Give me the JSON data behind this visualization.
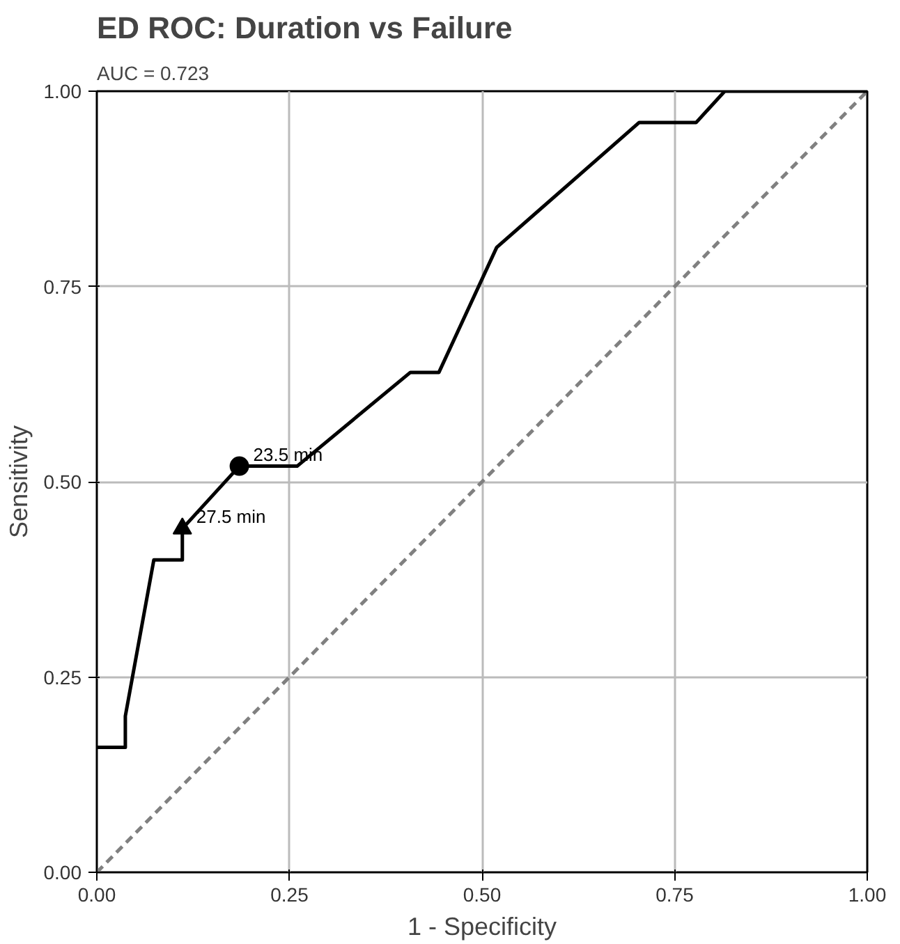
{
  "chart_data": {
    "type": "line",
    "title": "ED ROC: Duration vs Failure",
    "subtitle": "AUC = 0.723",
    "xlabel": "1 - Specificity",
    "ylabel": "Sensitivity",
    "xlim": [
      0,
      1
    ],
    "ylim": [
      0,
      1
    ],
    "xticks": [
      {
        "value": 0,
        "label": "0.00"
      },
      {
        "value": 0.25,
        "label": "0.25"
      },
      {
        "value": 0.5,
        "label": "0.50"
      },
      {
        "value": 0.75,
        "label": "0.75"
      },
      {
        "value": 1,
        "label": "1.00"
      }
    ],
    "yticks": [
      {
        "value": 0,
        "label": "0.00"
      },
      {
        "value": 0.25,
        "label": "0.25"
      },
      {
        "value": 0.5,
        "label": "0.50"
      },
      {
        "value": 0.75,
        "label": "0.75"
      },
      {
        "value": 1,
        "label": "1.00"
      }
    ],
    "grid": true,
    "series": [
      {
        "type": "line",
        "color": "#808080",
        "line_style": "dashed",
        "x": [
          0,
          1
        ],
        "values": [
          0,
          1
        ]
      },
      {
        "color": "#000000",
        "line_style": "solid",
        "x": [
          0,
          0.037,
          0.037,
          0.074,
          0.111,
          0.111,
          0.185,
          0.26,
          0.407,
          0.444,
          0.519,
          0.704,
          0.778,
          0.815,
          1
        ],
        "values": [
          0.16,
          0.16,
          0.2,
          0.4,
          0.4,
          0.44,
          0.52,
          0.52,
          0.64,
          0.64,
          0.8,
          0.96,
          0.96,
          1,
          1
        ]
      },
      {
        "type": "scatter",
        "color": "#000000",
        "marker": "circle",
        "x": [
          0.185
        ],
        "values": [
          0.52
        ]
      },
      {
        "type": "scatter",
        "color": "#000000",
        "marker": "triangle",
        "x": [
          0.111
        ],
        "values": [
          0.44
        ]
      }
    ],
    "annotations": [
      {
        "text": "23.5 min",
        "x": 0.185,
        "y": 0.52
      },
      {
        "text": "27.5 min",
        "x": 0.111,
        "y": 0.44
      }
    ]
  }
}
